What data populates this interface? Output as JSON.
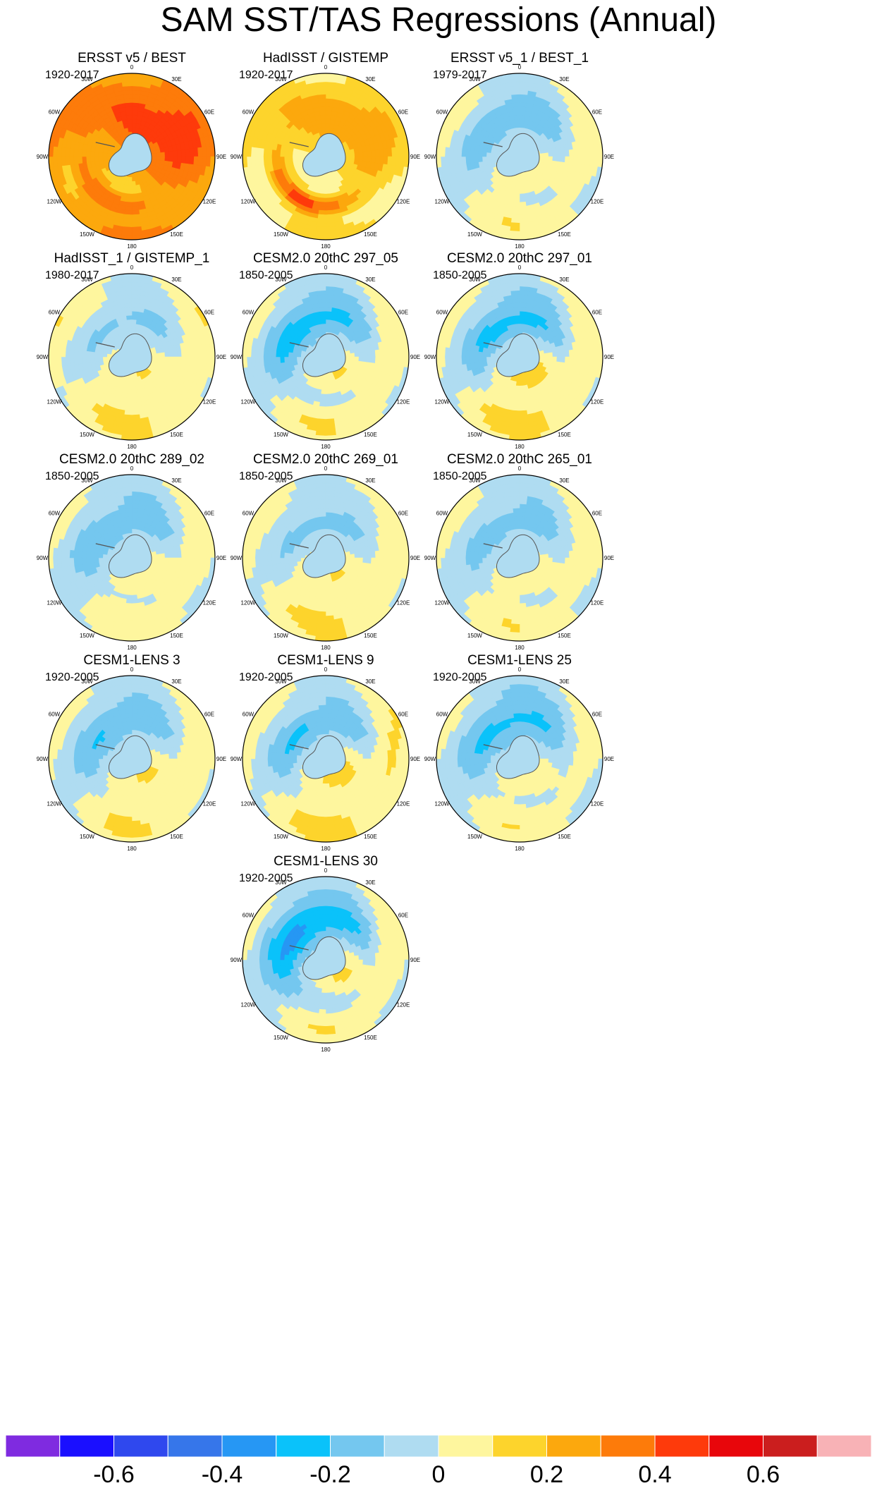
{
  "chart_data": {
    "type": "polar-contour-map",
    "title": "SAM SST/TAS Regressions (Annual)",
    "projection": "South Polar Stereographic",
    "longitude_labels": [
      "0",
      "30E",
      "60E",
      "90E",
      "120E",
      "150E",
      "180",
      "150W",
      "120W",
      "90W",
      "60W",
      "30W"
    ],
    "panels": [
      {
        "title": "ERSST v5 / BEST",
        "years": "1920-2017",
        "pattern": {
          "base": 0.3,
          "ring": 0.0,
          "amp": 0.15,
          "phase": 40,
          "hot": 0.2
        }
      },
      {
        "title": "HadISST / GISTEMP",
        "years": "1920-2017",
        "pattern": {
          "base": 0.12,
          "ring": 0.05,
          "amp": 0.12,
          "phase": 30,
          "hot": 0.35
        }
      },
      {
        "title": "ERSST v5_1 / BEST_1",
        "years": "1979-2017",
        "pattern": {
          "base": 0.02,
          "ring": -0.1,
          "amp": 0.1,
          "phase": 160,
          "hot": 0.0
        }
      },
      {
        "title": "HadISST_1 / GISTEMP_1",
        "years": "1980-2017",
        "pattern": {
          "base": 0.05,
          "ring": -0.1,
          "amp": 0.1,
          "phase": 170,
          "hot": 0.05
        }
      },
      {
        "title": "CESM2.0 20thC 297_05",
        "years": "1850-2005",
        "pattern": {
          "base": 0.02,
          "ring": -0.15,
          "amp": 0.15,
          "phase": 150,
          "hot": 0.05
        }
      },
      {
        "title": "CESM2.0 20thC 297_01",
        "years": "1850-2005",
        "pattern": {
          "base": 0.04,
          "ring": -0.15,
          "amp": 0.18,
          "phase": 160,
          "hot": 0.1
        }
      },
      {
        "title": "CESM2.0 20thC 289_02",
        "years": "1850-2005",
        "pattern": {
          "base": 0.01,
          "ring": -0.1,
          "amp": 0.12,
          "phase": 150,
          "hot": 0.05
        }
      },
      {
        "title": "CESM2.0 20thC 269_01",
        "years": "1850-2005",
        "pattern": {
          "base": 0.04,
          "ring": -0.1,
          "amp": 0.12,
          "phase": 170,
          "hot": 0.1
        }
      },
      {
        "title": "CESM2.0 20thC 265_01",
        "years": "1850-2005",
        "pattern": {
          "base": 0.02,
          "ring": -0.1,
          "amp": 0.1,
          "phase": 160,
          "hot": 0.05
        }
      },
      {
        "title": "CESM1-LENS 3",
        "years": "1920-2005",
        "pattern": {
          "base": 0.03,
          "ring": -0.12,
          "amp": 0.14,
          "phase": 150,
          "hot": 0.05
        }
      },
      {
        "title": "CESM1-LENS 9",
        "years": "1920-2005",
        "pattern": {
          "base": 0.05,
          "ring": -0.15,
          "amp": 0.16,
          "phase": 150,
          "hot": 0.1
        }
      },
      {
        "title": "CESM1-LENS 25",
        "years": "1920-2005",
        "pattern": {
          "base": 0.0,
          "ring": -0.12,
          "amp": 0.14,
          "phase": 160,
          "hot": 0.05
        }
      },
      {
        "title": "CESM1-LENS 30",
        "years": "1920-2005",
        "pattern": {
          "base": 0.01,
          "ring": -0.18,
          "amp": 0.18,
          "phase": 140,
          "hot": 0.05
        }
      }
    ],
    "colorbar": {
      "levels": [
        -0.7,
        -0.6,
        -0.5,
        -0.4,
        -0.3,
        -0.2,
        -0.1,
        0,
        0.1,
        0.2,
        0.3,
        0.4,
        0.5,
        0.6,
        0.7
      ],
      "colors": [
        "#7f2be0",
        "#1a0fff",
        "#2f48ee",
        "#3676ea",
        "#2697f4",
        "#0ac2fa",
        "#74c7ef",
        "#afdcf1",
        "#fef69e",
        "#fdd42c",
        "#fca80d",
        "#fd7b0a",
        "#fe3a0b",
        "#e8060b",
        "#cb1e1e",
        "#f8b2b6"
      ],
      "tick_labels": [
        "-0.6",
        "-0.4",
        "-0.2",
        "0",
        "0.2",
        "0.4",
        "0.6"
      ],
      "tick_values": [
        -0.6,
        -0.4,
        -0.2,
        0,
        0.2,
        0.4,
        0.6
      ]
    }
  }
}
